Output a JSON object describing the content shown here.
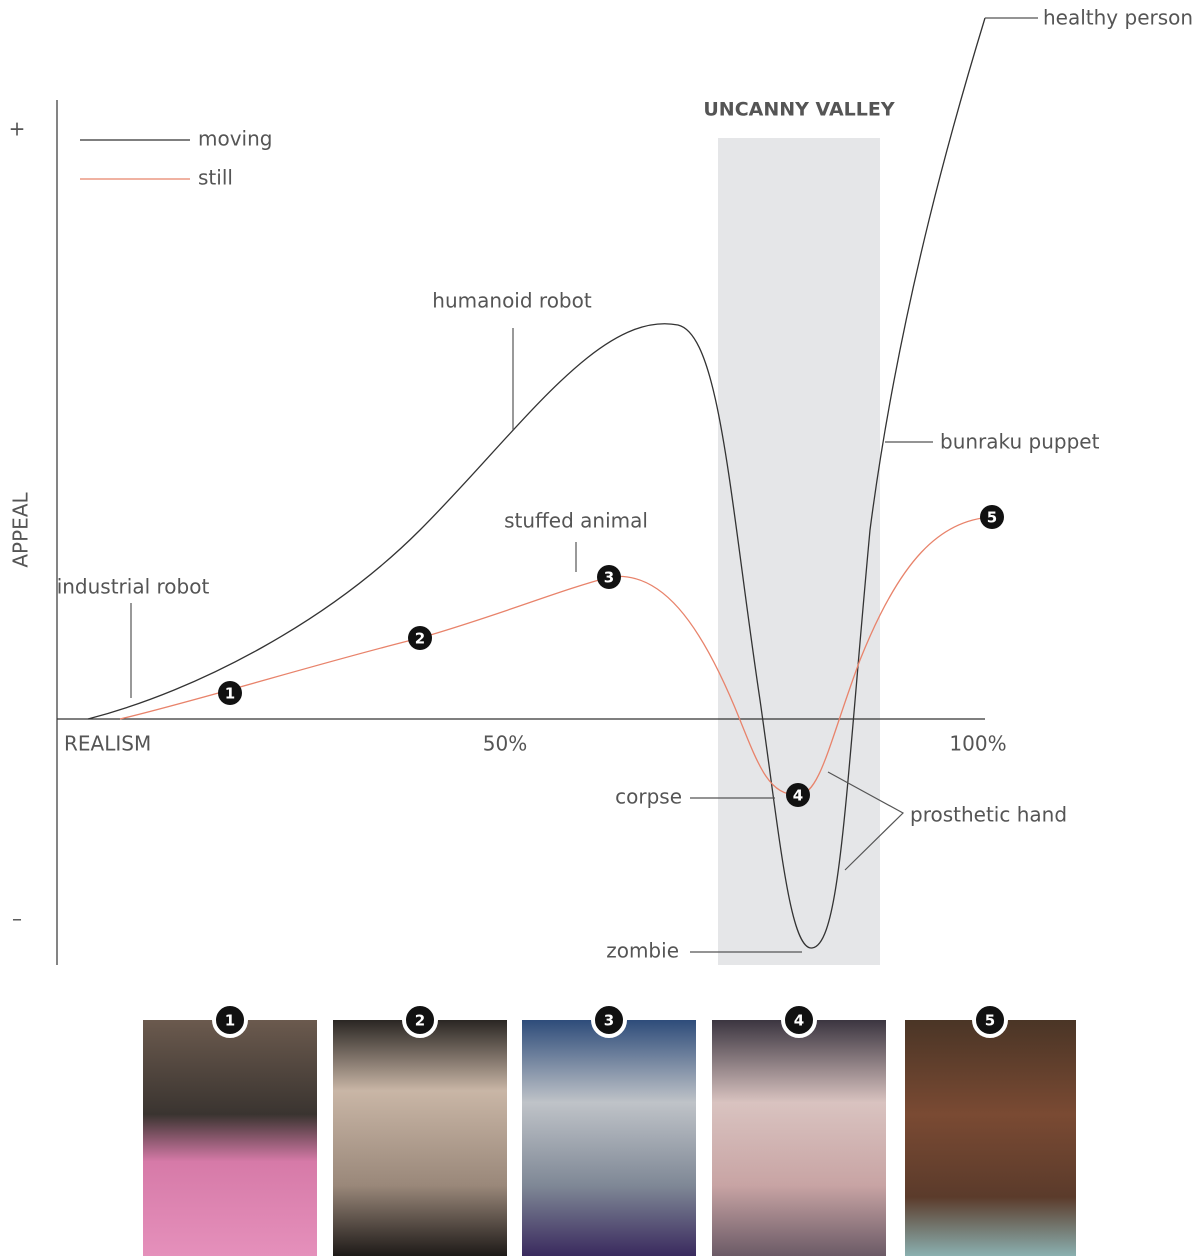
{
  "axis": {
    "y_plus": "+",
    "y_minus": "–",
    "y_label": "APPEAL",
    "x_start": "REALISM",
    "x_mid": "50%",
    "x_end": "100%"
  },
  "legend": [
    {
      "label": "moving"
    },
    {
      "label": "still"
    }
  ],
  "region": "UNCANNY VALLEY",
  "annotations": {
    "healthy_person": "healthy person",
    "humanoid_robot": "humanoid robot",
    "bunraku_puppet": "bunraku puppet",
    "stuffed_animal": "stuffed animal",
    "industrial_robot": "industrial robot",
    "corpse": "corpse",
    "prosthetic_hand": "prosthetic hand",
    "zombie": "zombie"
  },
  "markers": [
    "1",
    "2",
    "3",
    "4",
    "5"
  ]
}
